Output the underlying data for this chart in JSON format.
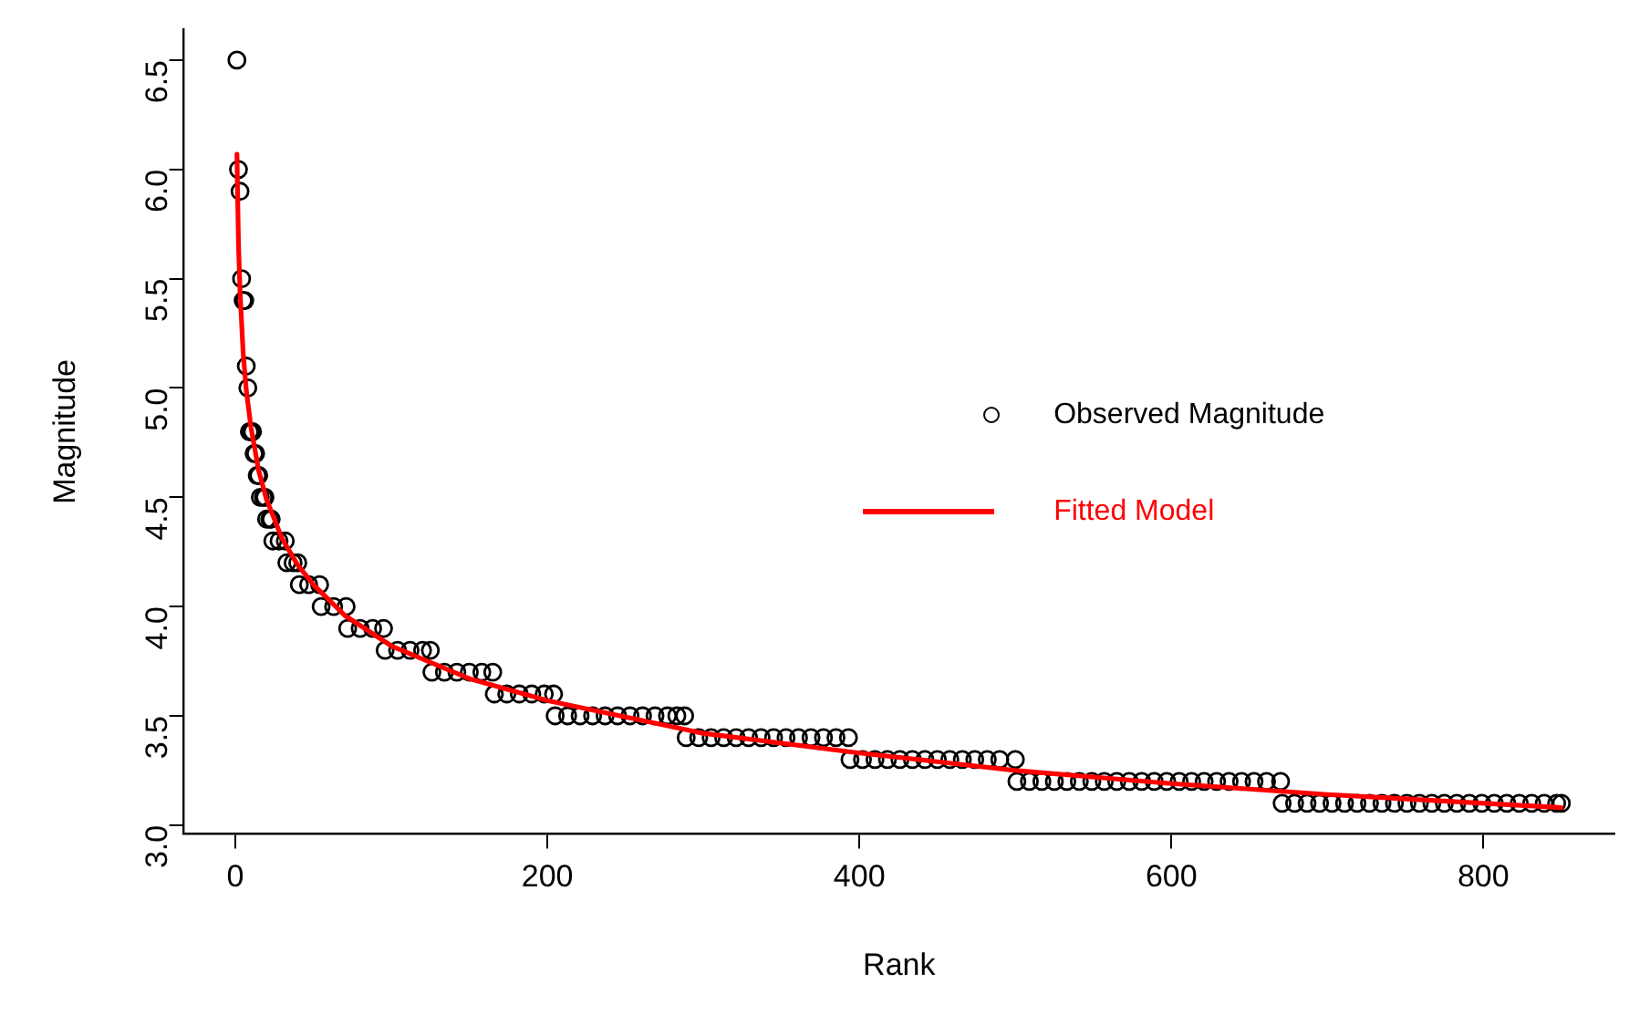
{
  "chart_data": {
    "type": "scatter",
    "xlabel": "Rank",
    "ylabel": "Magnitude",
    "xlim": [
      -33,
      884
    ],
    "ylim": [
      2.96,
      6.64
    ],
    "xticks": [
      0,
      200,
      400,
      600,
      800
    ],
    "yticks": [
      {
        "value": 3,
        "label": "3.0"
      },
      {
        "value": 3.5,
        "label": "3.5"
      },
      {
        "value": 4,
        "label": "4.0"
      },
      {
        "value": 4.5,
        "label": "4.5"
      },
      {
        "value": 5,
        "label": "5.0"
      },
      {
        "value": 5.5,
        "label": "5.5"
      },
      {
        "value": 6,
        "label": "6.0"
      },
      {
        "value": 6.5,
        "label": "6.5"
      }
    ],
    "grid": false,
    "legend": "right",
    "marker": "circle",
    "series": [
      {
        "name": "Observed Magnitude",
        "color": "#000000",
        "x": [
          1,
          2,
          3,
          4,
          5,
          6,
          7,
          8,
          9,
          10,
          11,
          12,
          13,
          14,
          15,
          16,
          18,
          19,
          20,
          22,
          23,
          24,
          28,
          32,
          33,
          37,
          40,
          41,
          47,
          54,
          55,
          63,
          71,
          72,
          80,
          88,
          95,
          96,
          104,
          112,
          120,
          125,
          126,
          134,
          142,
          150,
          158,
          165,
          166,
          174,
          182,
          190,
          198,
          204,
          205,
          213,
          221,
          229,
          237,
          245,
          253,
          261,
          269,
          277,
          283,
          288,
          289,
          297,
          305,
          313,
          321,
          329,
          337,
          345,
          353,
          361,
          369,
          377,
          385,
          393,
          394,
          402,
          410,
          418,
          426,
          434,
          442,
          450,
          458,
          466,
          474,
          482,
          490,
          500,
          501,
          509,
          517,
          525,
          533,
          541,
          549,
          557,
          565,
          573,
          581,
          589,
          597,
          605,
          613,
          621,
          629,
          637,
          645,
          653,
          661,
          670,
          671,
          679,
          687,
          695,
          703,
          711,
          719,
          727,
          735,
          743,
          751,
          759,
          767,
          775,
          783,
          791,
          799,
          807,
          815,
          823,
          831,
          839,
          847,
          850
        ],
        "values": [
          6.5,
          6.0,
          5.9,
          5.5,
          5.4,
          5.4,
          5.1,
          5.0,
          4.8,
          4.8,
          4.8,
          4.7,
          4.7,
          4.6,
          4.6,
          4.5,
          4.5,
          4.5,
          4.4,
          4.4,
          4.4,
          4.3,
          4.3,
          4.3,
          4.2,
          4.2,
          4.2,
          4.1,
          4.1,
          4.1,
          4.0,
          4.0,
          4.0,
          3.9,
          3.9,
          3.9,
          3.9,
          3.8,
          3.8,
          3.8,
          3.8,
          3.8,
          3.7,
          3.7,
          3.7,
          3.7,
          3.7,
          3.7,
          3.6,
          3.6,
          3.6,
          3.6,
          3.6,
          3.6,
          3.5,
          3.5,
          3.5,
          3.5,
          3.5,
          3.5,
          3.5,
          3.5,
          3.5,
          3.5,
          3.5,
          3.5,
          3.4,
          3.4,
          3.4,
          3.4,
          3.4,
          3.4,
          3.4,
          3.4,
          3.4,
          3.4,
          3.4,
          3.4,
          3.4,
          3.4,
          3.3,
          3.3,
          3.3,
          3.3,
          3.3,
          3.3,
          3.3,
          3.3,
          3.3,
          3.3,
          3.3,
          3.3,
          3.3,
          3.3,
          3.2,
          3.2,
          3.2,
          3.2,
          3.2,
          3.2,
          3.2,
          3.2,
          3.2,
          3.2,
          3.2,
          3.2,
          3.2,
          3.2,
          3.2,
          3.2,
          3.2,
          3.2,
          3.2,
          3.2,
          3.2,
          3.2,
          3.1,
          3.1,
          3.1,
          3.1,
          3.1,
          3.1,
          3.1,
          3.1,
          3.1,
          3.1,
          3.1,
          3.1,
          3.1,
          3.1,
          3.1,
          3.1,
          3.1,
          3.1,
          3.1,
          3.1,
          3.1,
          3.1,
          3.1,
          3.1
        ]
      },
      {
        "name": "Fitted Model",
        "type": "line",
        "color": "#ff0000",
        "marker": "none",
        "line_style": "solid",
        "x": [
          1,
          2,
          3,
          5,
          7,
          10,
          15,
          20,
          30,
          40,
          50,
          70,
          100,
          150,
          200,
          300,
          400,
          500,
          600,
          700,
          850
        ],
        "values": [
          6.07,
          5.66,
          5.44,
          5.16,
          4.99,
          4.82,
          4.62,
          4.49,
          4.31,
          4.19,
          4.1,
          3.96,
          3.82,
          3.67,
          3.57,
          3.42,
          3.33,
          3.25,
          3.19,
          3.14,
          3.08
        ]
      }
    ]
  }
}
